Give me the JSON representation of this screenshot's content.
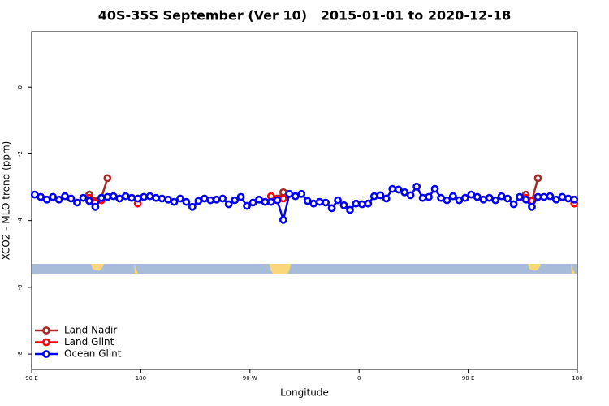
{
  "chart_data": {
    "type": "line",
    "title": "40S-35S September (Ver 10)   2015-01-01 to 2020-12-18",
    "x_label": "Longitude",
    "y_label": "XCO2 - MLO trend (ppm)",
    "xlim": [
      90,
      540
    ],
    "ylim": [
      -8.46,
      1.66
    ],
    "xticks": [
      {
        "value": 90,
        "label": "90 E"
      },
      180,
      {
        "value": 270,
        "label": "90 W"
      },
      {
        "value": 360,
        "label": "0"
      },
      {
        "value": 450,
        "label": "90 E"
      },
      {
        "value": 540,
        "label": "180"
      }
    ],
    "yticks": [
      0,
      -2,
      -4,
      -6,
      -8
    ],
    "legend": "bottom-left",
    "x": [
      92.5,
      97.5,
      102.5,
      107.5,
      112.5,
      117.5,
      122.5,
      127.5,
      132.5,
      137.5,
      142.5,
      147.5,
      152.5,
      157.5,
      162.5,
      167.5,
      172.5,
      177.5,
      182.5,
      187.5,
      192.5,
      197.5,
      202.5,
      207.5,
      212.5,
      217.5,
      222.5,
      227.5,
      232.5,
      237.5,
      242.5,
      247.5,
      252.5,
      257.5,
      262.5,
      267.5,
      272.5,
      277.5,
      282.5,
      287.5,
      292.5,
      297.5,
      302.5,
      307.5,
      312.5,
      317.5,
      322.5,
      327.5,
      332.5,
      337.5,
      342.5,
      347.5,
      352.5,
      357.5,
      362.5,
      367.5,
      372.5,
      377.5,
      382.5,
      387.5,
      392.5,
      397.5,
      402.5,
      407.5,
      412.5,
      417.5,
      422.5,
      427.5,
      432.5,
      437.5,
      442.5,
      447.5,
      452.5,
      457.5,
      462.5,
      467.5,
      472.5,
      477.5,
      482.5,
      487.5,
      492.5,
      497.5,
      502.5,
      507.5,
      512.5,
      517.5,
      522.5,
      527.5,
      532.5,
      537.5
    ],
    "series": [
      {
        "name": "Land Nadir",
        "color": "#a52a2a",
        "values": [
          null,
          null,
          null,
          null,
          null,
          null,
          null,
          null,
          null,
          -3.22,
          -3.41,
          -3.32,
          -2.73,
          null,
          null,
          null,
          null,
          null,
          null,
          null,
          null,
          null,
          null,
          null,
          null,
          null,
          null,
          null,
          null,
          null,
          null,
          null,
          null,
          null,
          null,
          null,
          null,
          null,
          null,
          -3.27,
          -3.34,
          -3.15,
          null,
          null,
          null,
          null,
          null,
          null,
          null,
          null,
          null,
          null,
          null,
          null,
          null,
          null,
          null,
          null,
          null,
          null,
          null,
          null,
          null,
          null,
          null,
          null,
          null,
          null,
          null,
          null,
          null,
          null,
          null,
          null,
          null,
          null,
          null,
          null,
          null,
          null,
          null,
          -3.22,
          -3.41,
          -2.73,
          null,
          null,
          null,
          null,
          null,
          null
        ]
      },
      {
        "name": "Land Glint",
        "color": "#ff0000",
        "values": [
          null,
          null,
          null,
          null,
          null,
          null,
          null,
          null,
          null,
          -3.32,
          -3.46,
          -3.39,
          null,
          null,
          null,
          null,
          null,
          -3.49,
          null,
          null,
          null,
          null,
          null,
          null,
          null,
          null,
          null,
          null,
          null,
          null,
          null,
          null,
          null,
          null,
          null,
          null,
          null,
          null,
          null,
          -3.27,
          -3.37,
          -3.34,
          null,
          null,
          null,
          null,
          null,
          null,
          null,
          null,
          null,
          null,
          null,
          null,
          null,
          null,
          null,
          null,
          null,
          null,
          null,
          null,
          null,
          null,
          null,
          null,
          null,
          null,
          null,
          null,
          null,
          null,
          null,
          null,
          null,
          null,
          null,
          null,
          null,
          null,
          null,
          -3.32,
          -3.41,
          null,
          null,
          null,
          null,
          null,
          null,
          -3.49
        ]
      },
      {
        "name": "Ocean Glint",
        "color": "#0000ee",
        "values": [
          -3.22,
          -3.29,
          -3.37,
          -3.29,
          -3.37,
          -3.27,
          -3.34,
          -3.46,
          -3.32,
          -3.41,
          -3.59,
          -3.32,
          -3.29,
          -3.27,
          -3.34,
          -3.27,
          -3.32,
          -3.34,
          -3.29,
          -3.27,
          -3.32,
          -3.34,
          -3.37,
          -3.44,
          -3.34,
          -3.44,
          -3.59,
          -3.41,
          -3.34,
          -3.39,
          -3.37,
          -3.34,
          -3.51,
          -3.39,
          -3.29,
          -3.56,
          -3.46,
          -3.37,
          -3.44,
          -3.44,
          -3.39,
          -3.98,
          -3.2,
          -3.27,
          -3.2,
          -3.41,
          -3.49,
          -3.44,
          -3.46,
          -3.63,
          -3.39,
          -3.54,
          -3.68,
          -3.49,
          -3.51,
          -3.49,
          -3.27,
          -3.24,
          -3.34,
          -3.05,
          -3.07,
          -3.15,
          -3.24,
          -2.98,
          -3.32,
          -3.29,
          -3.05,
          -3.32,
          -3.39,
          -3.27,
          -3.39,
          -3.32,
          -3.22,
          -3.29,
          -3.37,
          -3.32,
          -3.39,
          -3.27,
          -3.34,
          -3.51,
          -3.29,
          -3.37,
          -3.59,
          -3.29,
          -3.29,
          -3.27,
          -3.37,
          -3.29,
          -3.34,
          -3.37
        ]
      }
    ]
  }
}
